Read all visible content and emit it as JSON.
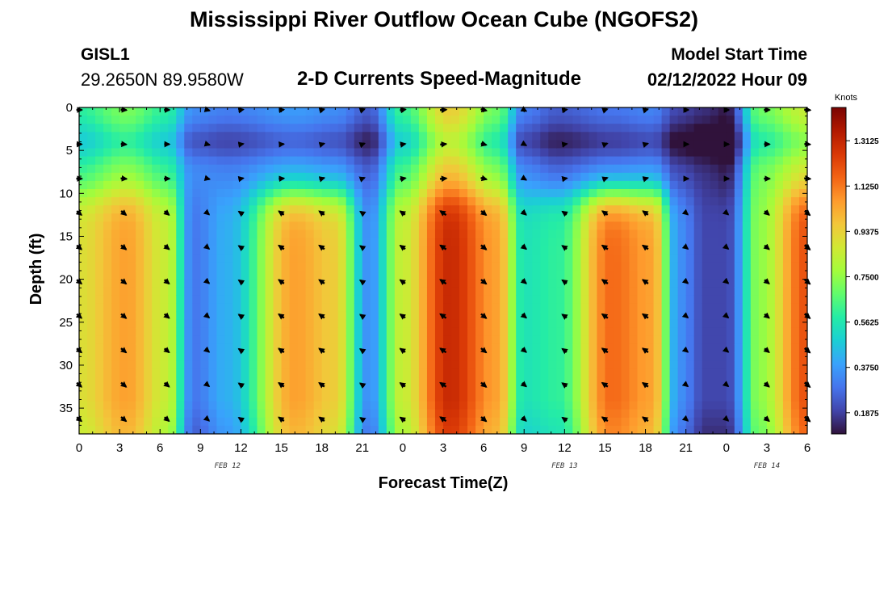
{
  "header": {
    "title": "Mississippi River Outflow Ocean Cube (NGOFS2)",
    "station_id": "GISL1",
    "station_coords": "29.2650N  89.9580W",
    "subtitle": "2-D Currents Speed-Magnitude",
    "start_label": "Model Start Time",
    "start_value": "02/12/2022 Hour 09"
  },
  "footer": {
    "title": "Mississippi River Outflow Ocean Cube (NGOFS2)"
  },
  "chart_data": {
    "type": "heatmap",
    "xlabel": "Forecast Time(Z)",
    "ylabel": "Depth (ft)",
    "x_range_hours": [
      0,
      54
    ],
    "x_ticks": [
      "0",
      "3",
      "6",
      "9",
      "12",
      "15",
      "18",
      "21",
      "0",
      "3",
      "6",
      "9",
      "12",
      "15",
      "18",
      "21",
      "0",
      "3",
      "6"
    ],
    "date_labels": [
      {
        "label": "FEB 12",
        "hour": 11
      },
      {
        "label": "FEB 13",
        "hour": 36
      },
      {
        "label": "FEB 14",
        "hour": 51
      }
    ],
    "y_range_ft": [
      0,
      38
    ],
    "y_ticks": [
      "0",
      "5",
      "10",
      "15",
      "20",
      "25",
      "30",
      "35"
    ],
    "colorbar": {
      "unit": "Knots",
      "range": [
        0.1,
        1.45
      ],
      "labels": [
        "1.3125",
        "1.1250",
        "0.9375",
        "0.7500",
        "0.5625",
        "0.3750",
        "0.1875"
      ],
      "colormap": [
        "#30123b",
        "#4145ab",
        "#4675ed",
        "#39a2fc",
        "#1bcfd4",
        "#24eca6",
        "#61fc6c",
        "#a4fc3b",
        "#d1e834",
        "#f3c63a",
        "#fe9b2d",
        "#f36315",
        "#d93806",
        "#b11901",
        "#7a0402"
      ]
    },
    "speed_anchors_hours": [
      0,
      3.5,
      6.5,
      8.5,
      11,
      16,
      19,
      21.5,
      24,
      27.5,
      31,
      33,
      35.5,
      39.5,
      42.5,
      44.5,
      46.5,
      48,
      50.5,
      54
    ],
    "surface_speed_knots": [
      0.6,
      0.72,
      0.6,
      0.35,
      0.32,
      0.38,
      0.35,
      0.25,
      0.62,
      0.95,
      0.7,
      0.32,
      0.25,
      0.3,
      0.33,
      0.2,
      0.16,
      0.12,
      0.7,
      0.85
    ],
    "deep_speed_knots": [
      0.9,
      1.05,
      0.85,
      0.3,
      0.42,
      1.05,
      0.95,
      0.35,
      0.85,
      1.3,
      1.05,
      0.55,
      0.6,
      1.15,
      1.05,
      0.35,
      0.2,
      0.2,
      0.75,
      1.2
    ],
    "arrow_depths_ft": [
      0,
      4,
      8,
      12,
      16,
      20,
      24,
      28,
      32,
      36
    ],
    "arrow_hours": [
      0,
      3.3,
      6.5,
      9.5,
      12,
      15,
      18,
      21,
      24,
      27,
      30,
      33,
      36,
      39,
      42,
      45,
      48,
      51,
      54
    ],
    "arrow_directions_deg": [
      0,
      5,
      0,
      15,
      350,
      355,
      345,
      340,
      350,
      355,
      15,
      30,
      350,
      340,
      345,
      0,
      0,
      0,
      5
    ]
  }
}
